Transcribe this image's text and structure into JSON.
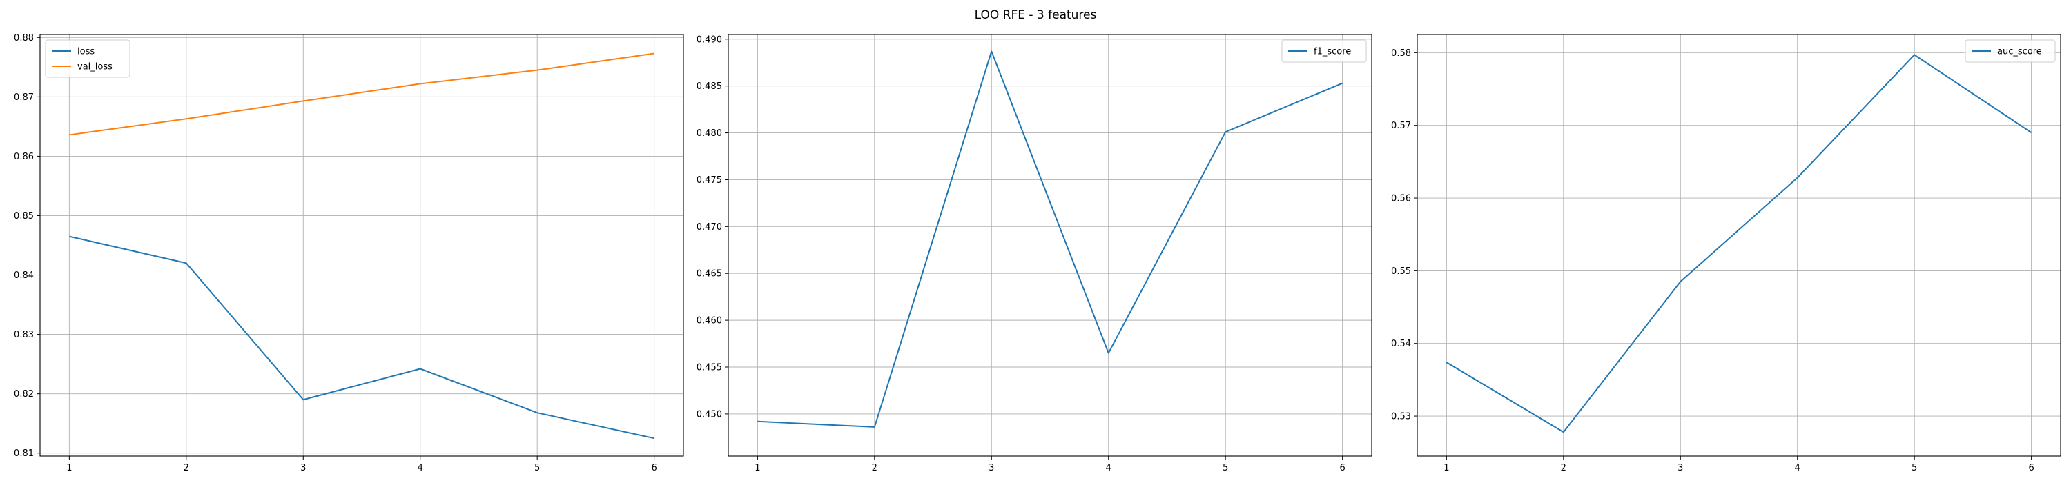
{
  "figure": {
    "title": "LOO RFE - 3 features"
  },
  "chart_data": [
    {
      "type": "line",
      "x": [
        1,
        2,
        3,
        4,
        5,
        6
      ],
      "xticks": [
        1,
        2,
        3,
        4,
        5,
        6
      ],
      "xlim": [
        0.75,
        6.25
      ],
      "ylim": [
        0.8095,
        0.8805
      ],
      "yticks": [
        0.81,
        0.82,
        0.83,
        0.84,
        0.85,
        0.86,
        0.87,
        0.88
      ],
      "ytick_labels": [
        "0.81",
        "0.82",
        "0.83",
        "0.84",
        "0.85",
        "0.86",
        "0.87",
        "0.88"
      ],
      "grid": true,
      "legend_position": "upper-left",
      "series": [
        {
          "name": "loss",
          "color": "#1f77b4",
          "values": [
            0.8465,
            0.842,
            0.819,
            0.8242,
            0.8168,
            0.8125
          ]
        },
        {
          "name": "val_loss",
          "color": "#ff7f0e",
          "values": [
            0.8636,
            0.8663,
            0.8693,
            0.8722,
            0.8745,
            0.8773
          ]
        }
      ]
    },
    {
      "type": "line",
      "x": [
        1,
        2,
        3,
        4,
        5,
        6
      ],
      "xticks": [
        1,
        2,
        3,
        4,
        5,
        6
      ],
      "xlim": [
        0.75,
        6.25
      ],
      "ylim": [
        0.4455,
        0.4905
      ],
      "yticks": [
        0.45,
        0.455,
        0.46,
        0.465,
        0.47,
        0.475,
        0.48,
        0.485,
        0.49
      ],
      "ytick_labels": [
        "0.450",
        "0.455",
        "0.460",
        "0.465",
        "0.470",
        "0.475",
        "0.480",
        "0.485",
        "0.490"
      ],
      "grid": true,
      "legend_position": "upper-right",
      "series": [
        {
          "name": "f1_score",
          "color": "#1f77b4",
          "values": [
            0.4492,
            0.4486,
            0.4887,
            0.4565,
            0.4801,
            0.4853
          ]
        }
      ]
    },
    {
      "type": "line",
      "x": [
        1,
        2,
        3,
        4,
        5,
        6
      ],
      "xticks": [
        1,
        2,
        3,
        4,
        5,
        6
      ],
      "xlim": [
        0.75,
        6.25
      ],
      "ylim": [
        0.5245,
        0.5825
      ],
      "yticks": [
        0.53,
        0.54,
        0.55,
        0.56,
        0.57,
        0.58
      ],
      "ytick_labels": [
        "0.53",
        "0.54",
        "0.55",
        "0.56",
        "0.57",
        "0.58"
      ],
      "grid": true,
      "legend_position": "upper-right",
      "series": [
        {
          "name": "auc_score",
          "color": "#1f77b4",
          "values": [
            0.5374,
            0.5278,
            0.5485,
            0.5628,
            0.5797,
            0.569
          ]
        }
      ]
    }
  ]
}
